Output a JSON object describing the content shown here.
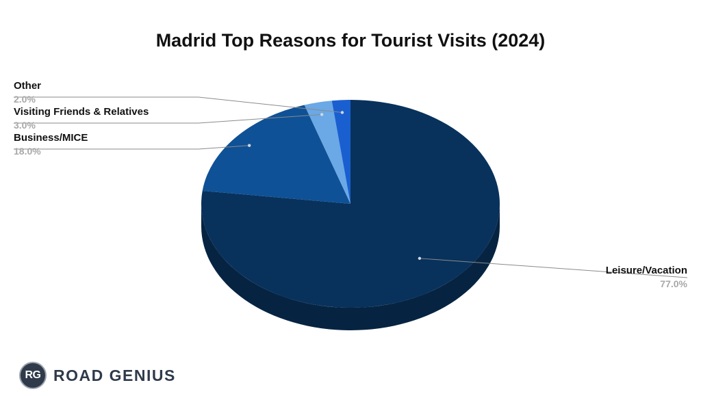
{
  "chart_data": {
    "type": "pie",
    "style": "3d",
    "title": "Madrid Top Reasons for Tourist Visits (2024)",
    "slices": [
      {
        "label": "Leisure/Vacation",
        "value": 77.0,
        "display": "77.0%",
        "color": "#08325c"
      },
      {
        "label": "Business/MICE",
        "value": 18.0,
        "display": "18.0%",
        "color": "#0f5196"
      },
      {
        "label": "Visiting Friends & Relatives",
        "value": 3.0,
        "display": "3.0%",
        "color": "#6aa8e6"
      },
      {
        "label": "Other",
        "value": 2.0,
        "display": "2.0%",
        "color": "#1a5fd0"
      }
    ],
    "legend": "none"
  },
  "branding": {
    "badge": "RG",
    "name": "ROAD GENIUS"
  }
}
